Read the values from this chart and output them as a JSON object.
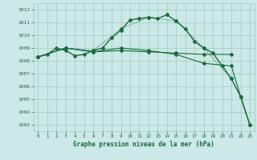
{
  "title": "Graphe pression niveau de la mer (hPa)",
  "xlim": [
    -0.5,
    23.5
  ],
  "ylim": [
    1002.5,
    1012.5
  ],
  "yticks": [
    1003,
    1004,
    1005,
    1006,
    1007,
    1008,
    1009,
    1010,
    1011,
    1012
  ],
  "xticks": [
    0,
    1,
    2,
    3,
    4,
    5,
    6,
    7,
    8,
    9,
    10,
    11,
    12,
    13,
    14,
    15,
    16,
    17,
    18,
    19,
    20,
    21,
    22,
    23
  ],
  "bg_color": "#cce8e8",
  "grid_color": "#99ccbb",
  "line_color": "#1a6b3a",
  "lines": [
    {
      "x": [
        0,
        1,
        2,
        3,
        4,
        5,
        6,
        7,
        8,
        9,
        10,
        11,
        12,
        13,
        14,
        15,
        16,
        17,
        18,
        19,
        20,
        21,
        22,
        23
      ],
      "y": [
        1008.3,
        1008.5,
        1009.0,
        1008.8,
        1008.4,
        1008.5,
        1008.8,
        1009.0,
        1009.8,
        1010.4,
        1011.2,
        1011.3,
        1011.4,
        1011.3,
        1011.6,
        1011.1,
        1010.5,
        1009.5,
        1009.0,
        1008.6,
        1007.6,
        1006.6,
        1005.2,
        1003.0
      ],
      "marker": "D",
      "markersize": 2.0,
      "linewidth": 1.0,
      "style": "solid"
    },
    {
      "x": [
        0,
        3,
        6,
        9,
        12,
        15,
        18,
        21
      ],
      "y": [
        1008.3,
        1009.0,
        1008.8,
        1010.5,
        1011.4,
        1011.1,
        1009.0,
        1006.6
      ],
      "marker": "D",
      "markersize": 2.0,
      "linewidth": 0.8,
      "style": "dotted"
    },
    {
      "x": [
        0,
        3,
        6,
        9,
        12,
        15,
        18,
        21
      ],
      "y": [
        1008.3,
        1009.0,
        1008.7,
        1008.8,
        1008.7,
        1008.6,
        1008.5,
        1008.5
      ],
      "marker": "D",
      "markersize": 2.0,
      "linewidth": 0.8,
      "style": "solid"
    },
    {
      "x": [
        0,
        3,
        6,
        9,
        12,
        15,
        18,
        21,
        22,
        23
      ],
      "y": [
        1008.3,
        1009.0,
        1008.7,
        1009.0,
        1008.8,
        1008.5,
        1007.8,
        1007.6,
        1005.2,
        1003.0
      ],
      "marker": "D",
      "markersize": 2.0,
      "linewidth": 0.8,
      "style": "solid"
    }
  ]
}
